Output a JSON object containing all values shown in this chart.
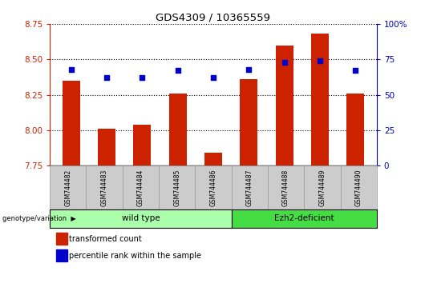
{
  "title": "GDS4309 / 10365559",
  "samples": [
    "GSM744482",
    "GSM744483",
    "GSM744484",
    "GSM744485",
    "GSM744486",
    "GSM744487",
    "GSM744488",
    "GSM744489",
    "GSM744490"
  ],
  "red_values": [
    8.35,
    8.01,
    8.04,
    8.26,
    7.84,
    8.36,
    8.6,
    8.68,
    8.26
  ],
  "blue_values": [
    68,
    62,
    62,
    67,
    62,
    68,
    73,
    74,
    67
  ],
  "ylim_left": [
    7.75,
    8.75
  ],
  "ylim_right": [
    0,
    100
  ],
  "yticks_left": [
    7.75,
    8.0,
    8.25,
    8.5,
    8.75
  ],
  "yticks_right": [
    0,
    25,
    50,
    75,
    100
  ],
  "ytick_labels_right": [
    "0",
    "25",
    "50",
    "75",
    "100%"
  ],
  "groups": [
    {
      "label": "wild type",
      "n": 5,
      "color": "#AAFFAA"
    },
    {
      "label": "Ezh2-deficient",
      "n": 4,
      "color": "#44DD44"
    }
  ],
  "group_label": "genotype/variation",
  "legend_red": "transformed count",
  "legend_blue": "percentile rank within the sample",
  "bar_color": "#CC2200",
  "dot_color": "#0000CC",
  "tick_color_left": "#CC2200",
  "tick_color_right": "#0000BB",
  "bar_width": 0.5,
  "label_box_color": "#CCCCCC",
  "label_box_edge": "#999999"
}
